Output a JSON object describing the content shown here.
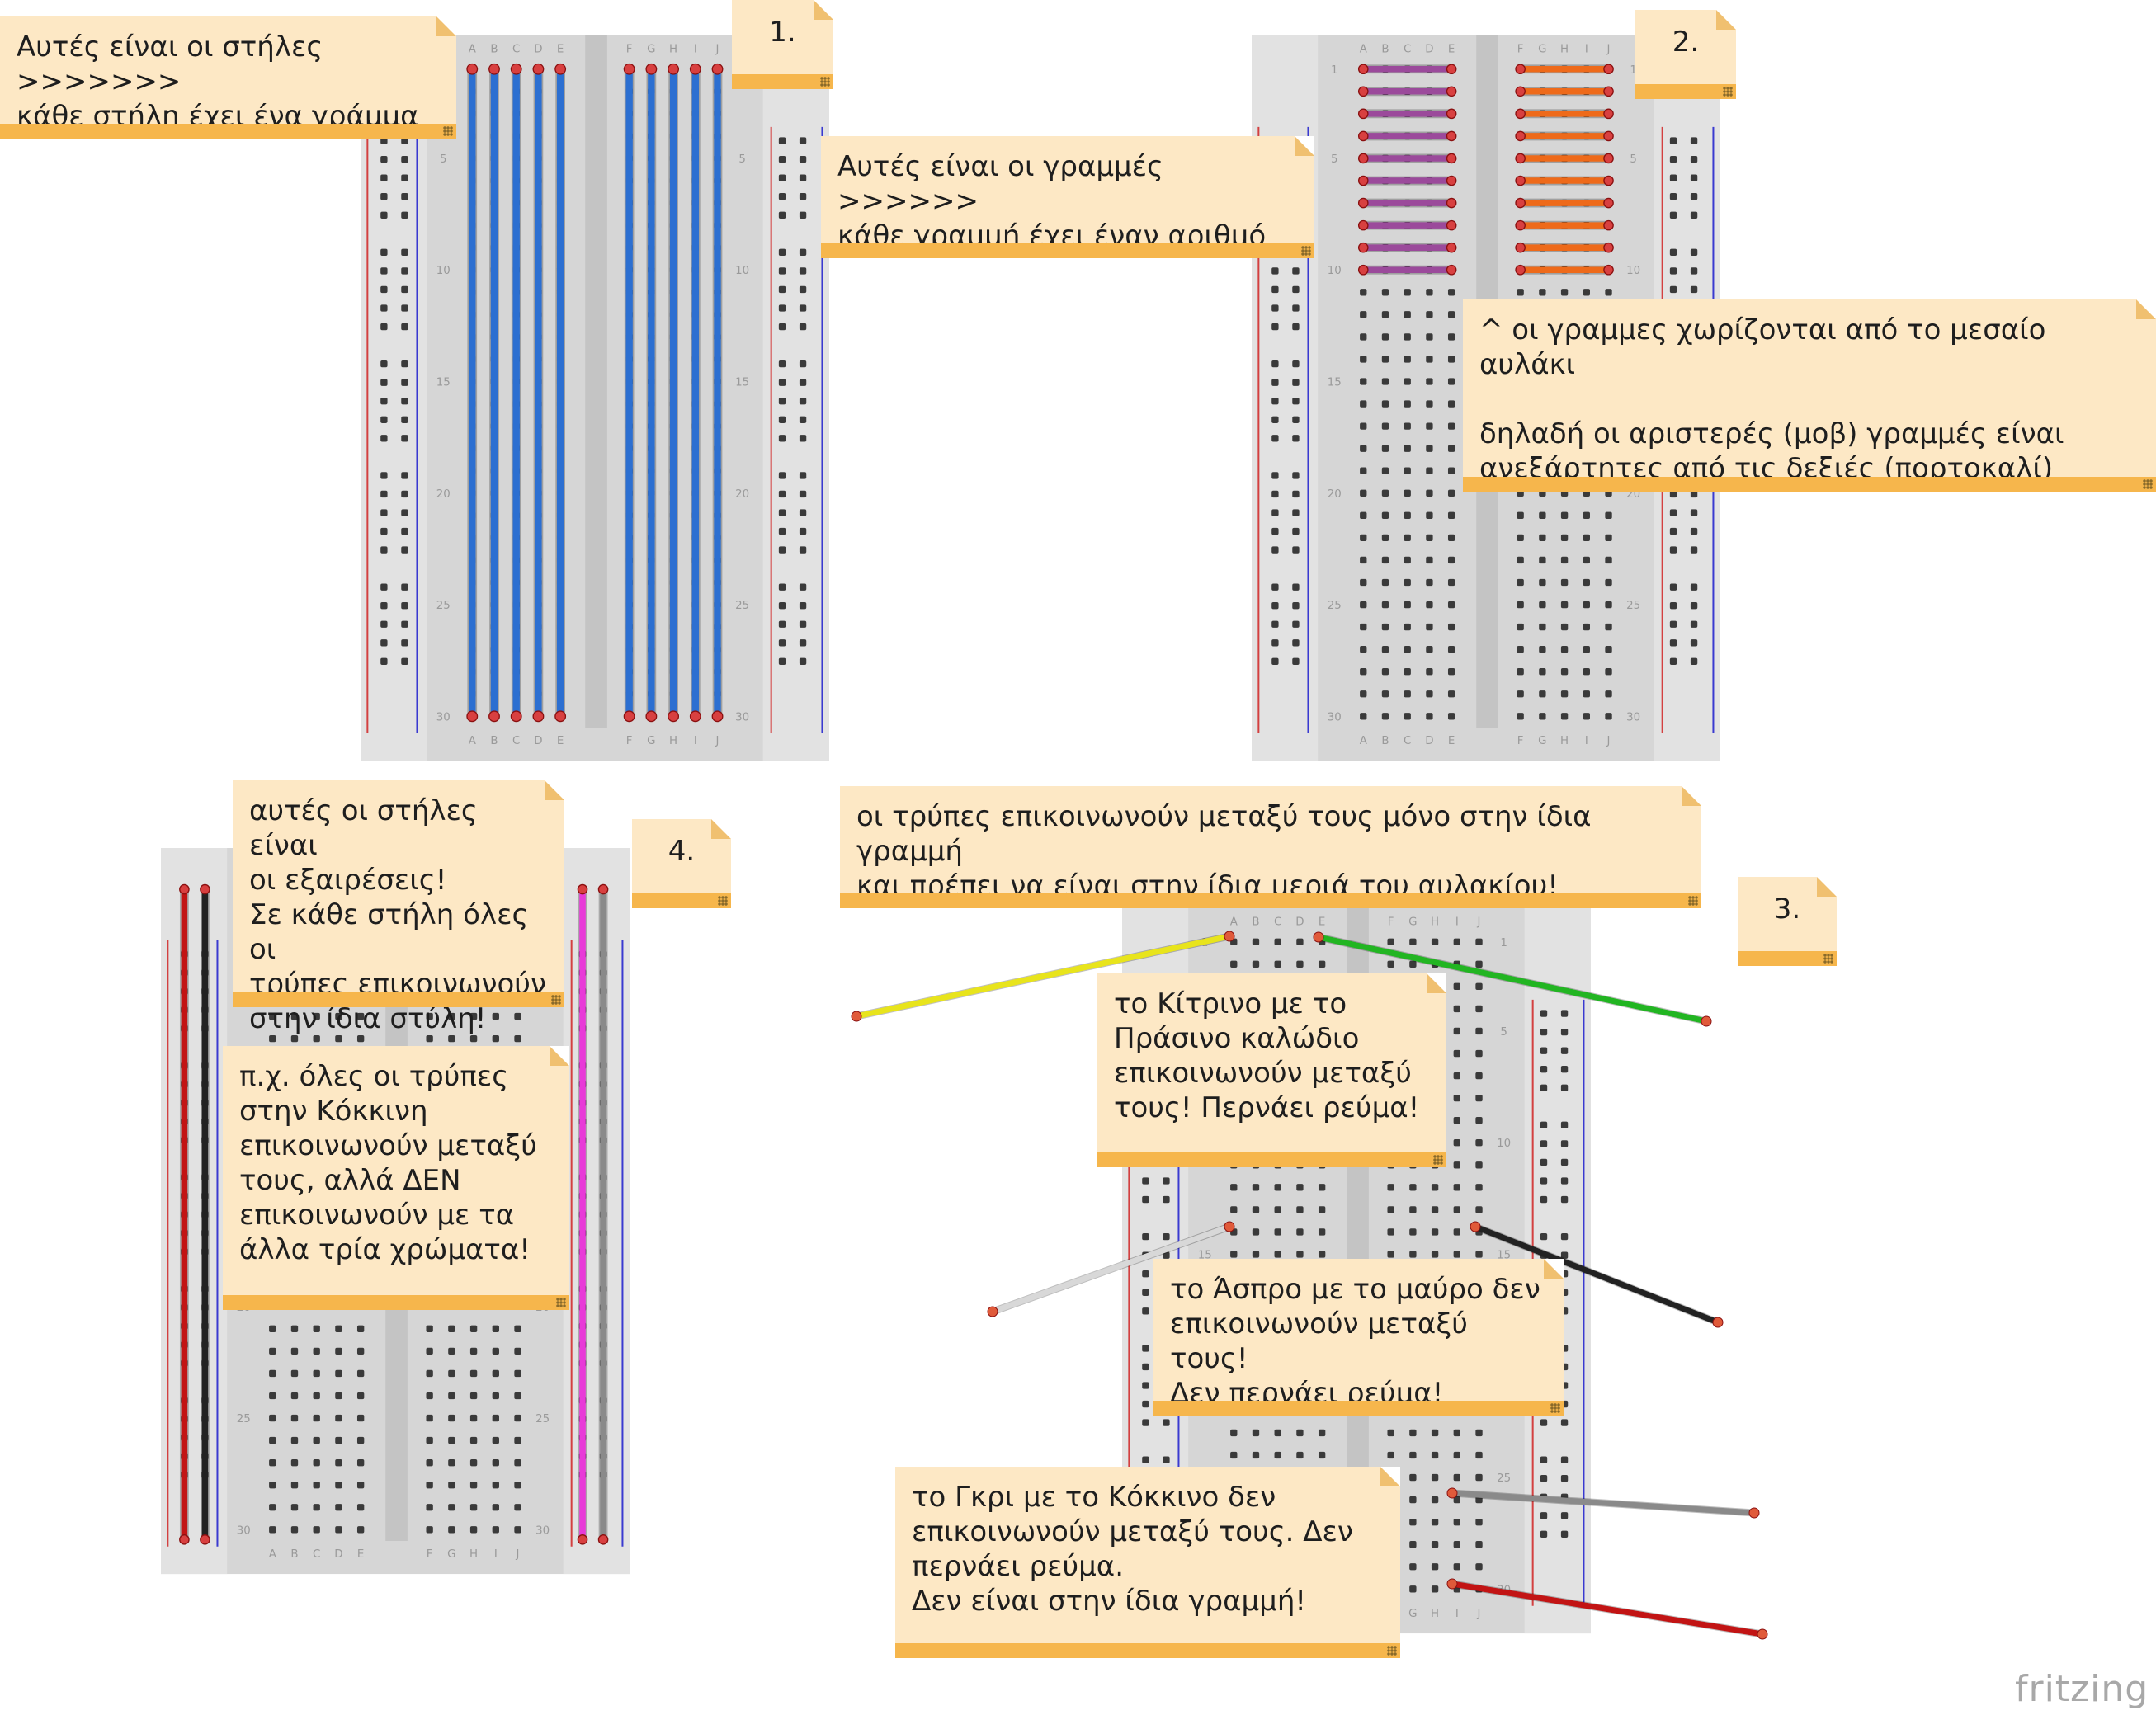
{
  "notes": {
    "columns_intro": "Αυτές είναι οι στήλες  >>>>>>>\nκάθε στήλη έχει ένα γράμμα",
    "rows_intro": "Αυτές είναι οι γραμμές  >>>>>>\nκάθε γραμμή έχει έναν αριθμό",
    "groove": "^   οι γραμμες χωρίζονται από το μεσαίο αυλάκι\n\n    δηλαδή οι αριστερές (μοβ) γραμμές είναι\nανεξάρτητες από τις δεξιές (πορτοκαλί)",
    "exceptions": "αυτές οι στήλες είναι\nοι εξαιρέσεις!\nΣε κάθε στήλη όλες οι\nτρύπες επικοινωνούν\nστην ίδια στύλη!",
    "example": "π.χ. όλες οι τρύπες\nστην Κόκκινη\nεπικοινωνούν μεταξύ\nτους, αλλά ΔΕΝ\nεπικοινωνούν με τα\nάλλα τρία χρώματα!",
    "same_row": "οι τρύπες επικοινωνούν μεταξύ τους μόνο στην ίδια γραμμή\nκαι πρέπει να είναι στην ίδια μεριά του αυλακίου!",
    "yellow_green": "το Κίτρινο με το\nΠράσινο καλώδιο\nεπικοινωνούν μεταξύ\nτους! Περνάει ρεύμα!",
    "white_black": "το Άσπρο με το μαύρο δεν\nεπικοινωνούν μεταξύ τους!\nΔεν περνάει ρεύμα!",
    "gray_red": "το Γκρι με το Κόκκινο δεν\nεπικοινωνούν μεταξύ τους. Δεν\nπερνάει ρεύμα.\nΔεν είναι στην ίδια γραμμή!"
  },
  "step_labels": {
    "step1": "1.",
    "step2": "2.",
    "step3": "3.",
    "step4": "4."
  },
  "breadboard": {
    "column_letters": [
      "A",
      "B",
      "C",
      "D",
      "E",
      "F",
      "G",
      "H",
      "I",
      "J"
    ],
    "row_numbers": [
      "1",
      "5",
      "10",
      "15",
      "20",
      "25",
      "30"
    ],
    "row_count": 30
  },
  "wire_colors": {
    "blue": "#2c6fd1",
    "purple": "#9b4a9b",
    "orange": "#ee6a1a",
    "yellow": "#e8e41c",
    "green": "#22b522",
    "white": "#d8d8d8",
    "black": "#222222",
    "gray": "#8a8a8a",
    "red": "#c21414",
    "magenta": "#e83ad8"
  },
  "logo": "fritzing"
}
